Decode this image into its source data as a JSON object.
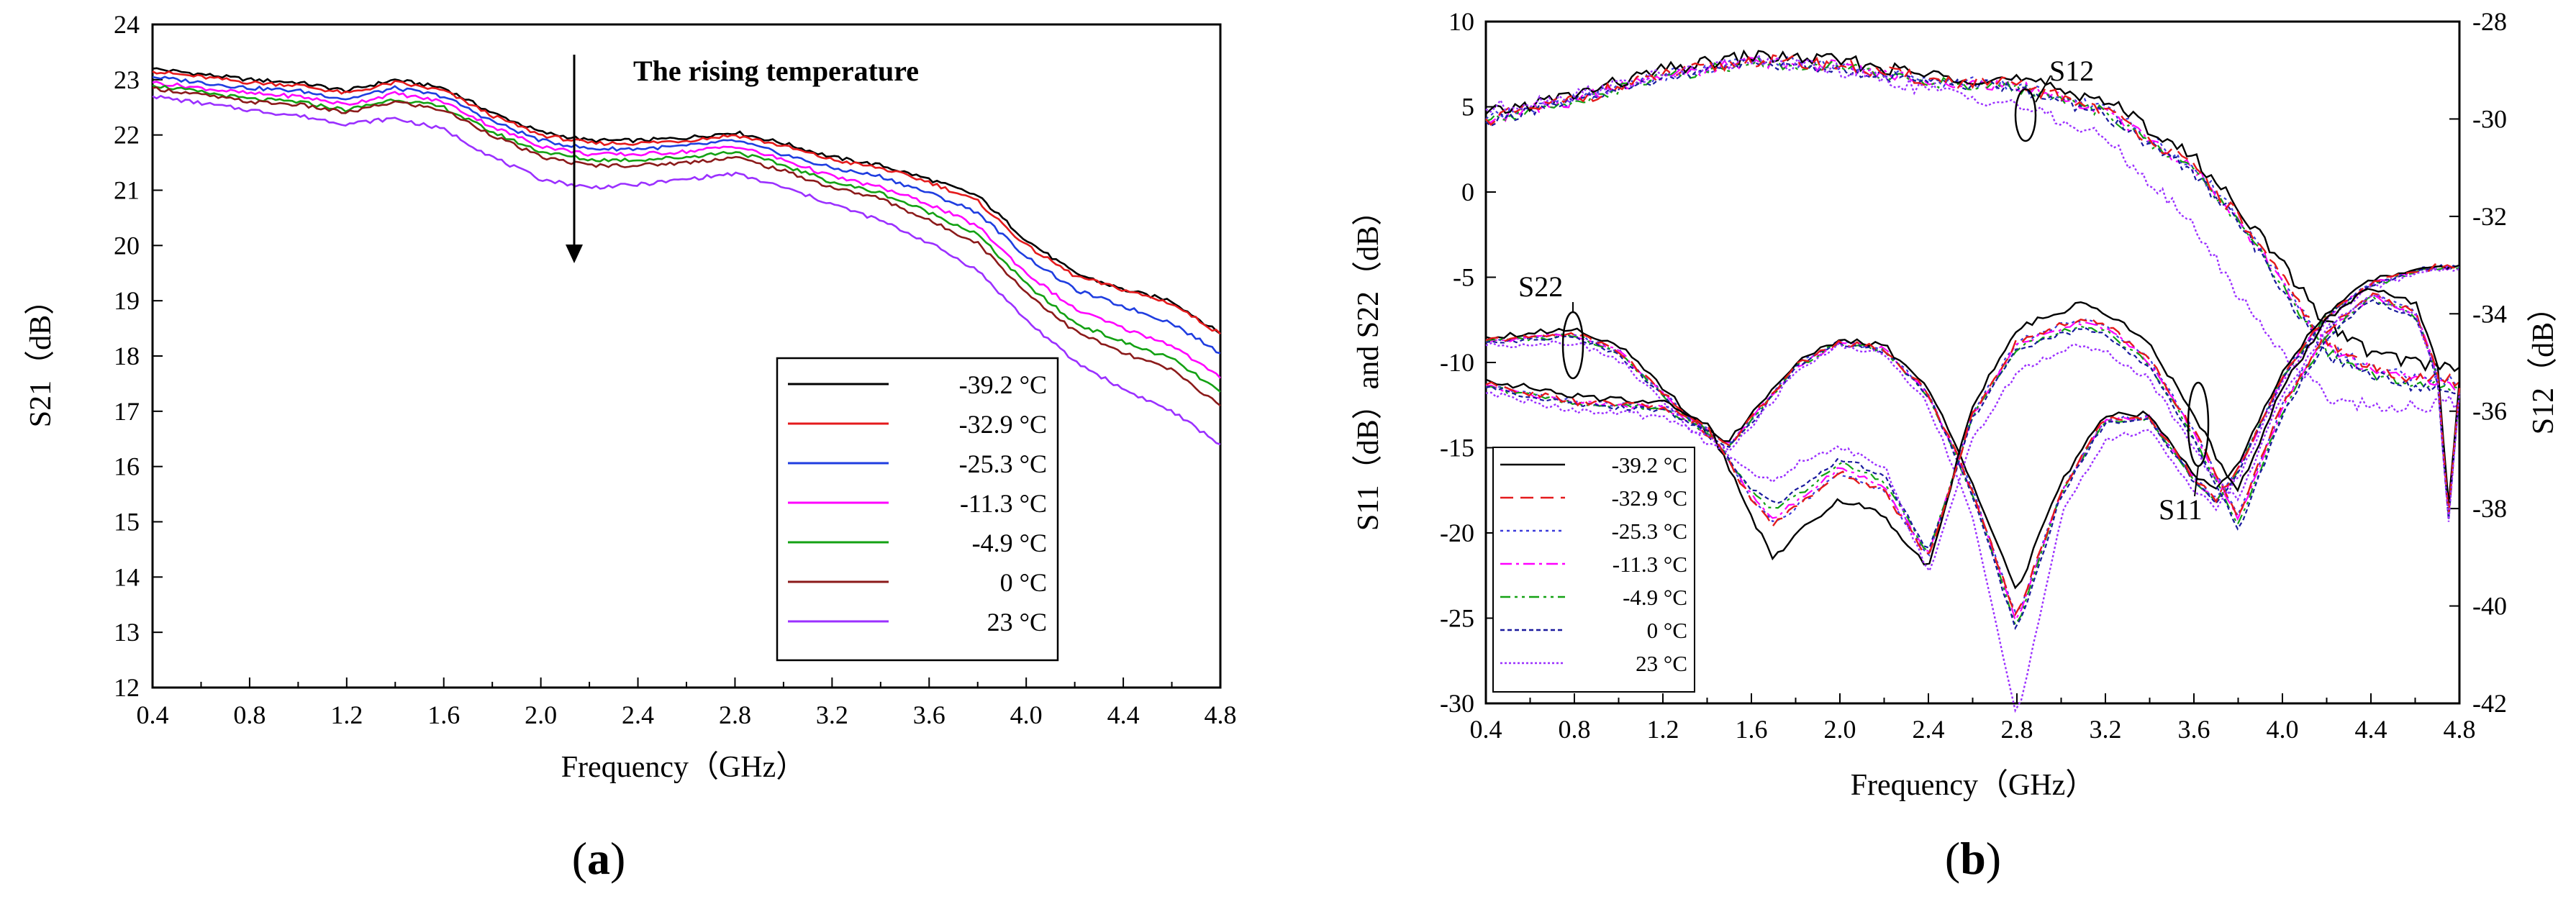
{
  "chart_data": [
    {
      "panel": "(a)",
      "type": "line",
      "xlabel": "Frequency（GHz）",
      "ylabel": "S21（dB）",
      "xlim": [
        0.4,
        4.8
      ],
      "ylim": [
        12,
        24
      ],
      "xticks": [
        "0.4",
        "0.8",
        "1.2",
        "1.6",
        "2.0",
        "2.4",
        "2.8",
        "3.2",
        "3.6",
        "4.0",
        "4.4",
        "4.8"
      ],
      "yticks": [
        "12",
        "13",
        "14",
        "15",
        "16",
        "17",
        "18",
        "19",
        "20",
        "21",
        "22",
        "23",
        "24"
      ],
      "annotation": "The rising temperature",
      "x": [
        0.4,
        0.8,
        1.0,
        1.2,
        1.4,
        1.6,
        1.8,
        2.0,
        2.2,
        2.4,
        2.6,
        2.8,
        3.0,
        3.2,
        3.4,
        3.6,
        3.8,
        4.0,
        4.2,
        4.4,
        4.6,
        4.8
      ],
      "series": [
        {
          "name": "-39.2 °C",
          "color": "#000000",
          "values": [
            23.2,
            23.0,
            22.95,
            22.8,
            23.0,
            22.85,
            22.4,
            22.05,
            21.9,
            21.9,
            21.95,
            22.05,
            21.85,
            21.6,
            21.45,
            21.2,
            20.9,
            20.1,
            19.5,
            19.2,
            19.0,
            18.4
          ]
        },
        {
          "name": "-32.9 °C",
          "color": "#e41a1c",
          "values": [
            23.15,
            22.95,
            22.9,
            22.75,
            22.95,
            22.8,
            22.35,
            22.0,
            21.85,
            21.85,
            21.9,
            22.0,
            21.8,
            21.55,
            21.4,
            21.15,
            20.8,
            20.0,
            19.45,
            19.2,
            18.95,
            18.4
          ]
        },
        {
          "name": "-25.3 °C",
          "color": "#1f3de0",
          "values": [
            23.05,
            22.85,
            22.8,
            22.65,
            22.85,
            22.7,
            22.25,
            21.9,
            21.75,
            21.75,
            21.8,
            21.9,
            21.65,
            21.4,
            21.25,
            20.95,
            20.6,
            19.8,
            19.2,
            18.9,
            18.6,
            18.05
          ]
        },
        {
          "name": "-11.3 °C",
          "color": "#ff00ff",
          "values": [
            22.95,
            22.75,
            22.7,
            22.55,
            22.75,
            22.6,
            22.15,
            21.8,
            21.65,
            21.65,
            21.7,
            21.8,
            21.55,
            21.25,
            21.05,
            20.75,
            20.35,
            19.5,
            18.85,
            18.5,
            18.2,
            17.6
          ]
        },
        {
          "name": "-4.9 °C",
          "color": "#13a113",
          "values": [
            22.9,
            22.65,
            22.6,
            22.45,
            22.65,
            22.5,
            22.05,
            21.7,
            21.55,
            21.55,
            21.6,
            21.7,
            21.45,
            21.15,
            20.95,
            20.6,
            20.2,
            19.3,
            18.6,
            18.25,
            17.95,
            17.35
          ]
        },
        {
          "name": "0 °C",
          "color": "#8b1a1a",
          "values": [
            22.85,
            22.6,
            22.55,
            22.4,
            22.6,
            22.45,
            22.0,
            21.6,
            21.45,
            21.45,
            21.5,
            21.6,
            21.35,
            21.05,
            20.85,
            20.45,
            20.05,
            19.15,
            18.45,
            18.05,
            17.75,
            17.1
          ]
        },
        {
          "name": "23 °C",
          "color": "#9b30ff",
          "values": [
            22.7,
            22.45,
            22.35,
            22.2,
            22.3,
            22.1,
            21.6,
            21.2,
            21.05,
            21.1,
            21.2,
            21.3,
            21.05,
            20.75,
            20.45,
            20.05,
            19.55,
            18.65,
            17.9,
            17.4,
            17.0,
            16.4
          ]
        }
      ]
    },
    {
      "panel": "(b)",
      "type": "line",
      "xlabel": "Frequency（GHz）",
      "ylabel": "S11（dB）and  S22（dB）",
      "ylabel_right": "S12（dB）",
      "xlim": [
        0.4,
        4.8
      ],
      "ylim": [
        -30,
        10
      ],
      "ylim_right": [
        -42,
        -28
      ],
      "xticks": [
        "0.4",
        "0.8",
        "1.2",
        "1.6",
        "2.0",
        "2.4",
        "2.8",
        "3.2",
        "3.6",
        "4.0",
        "4.4",
        "4.8"
      ],
      "yticks": [
        "-30",
        "-25",
        "-20",
        "-15",
        "-10",
        "-5",
        "0",
        "5",
        "10"
      ],
      "yticks_right": [
        "-42",
        "-40",
        "-38",
        "-36",
        "-34",
        "-32",
        "-30",
        "-28"
      ],
      "annotations": [
        "S12",
        "S22",
        "S11"
      ],
      "legend": [
        {
          "name": "-39.2 °C",
          "color": "#000000",
          "dash": "none"
        },
        {
          "name": "-32.9 °C",
          "color": "#e41a1c",
          "dash": "18 10"
        },
        {
          "name": "-25.3 °C",
          "color": "#3b3bdb",
          "dash": "4 5"
        },
        {
          "name": "-11.3 °C",
          "color": "#ff00ff",
          "dash": "16 6 4 6"
        },
        {
          "name": "-4.9 °C",
          "color": "#13a113",
          "dash": "14 6 4 6 4 6"
        },
        {
          "name": "0 °C",
          "color": "#1a1a9e",
          "dash": "6 4"
        },
        {
          "name": "23 °C",
          "color": "#9b30ff",
          "dash": "3 3"
        }
      ],
      "s12_right_axis": {
        "x": [
          0.4,
          0.8,
          1.2,
          1.6,
          2.0,
          2.4,
          2.8,
          3.2,
          3.6,
          3.8,
          4.0,
          4.2,
          4.4,
          4.6,
          4.8
        ],
        "series": [
          {
            "name": "-39.2 °C",
            "values": [
              -29.9,
              -29.5,
              -29.0,
              -28.7,
              -28.8,
              -29.1,
              -29.2,
              -29.6,
              -30.8,
              -31.8,
              -33.0,
              -34.2,
              -34.8,
              -35.0,
              -35.1
            ]
          },
          {
            "name": "-32.9 °C",
            "values": [
              -30.0,
              -29.6,
              -29.1,
              -28.8,
              -28.9,
              -29.2,
              -29.3,
              -29.8,
              -31.0,
              -32.0,
              -33.3,
              -34.6,
              -35.1,
              -35.3,
              -35.4
            ]
          },
          {
            "name": "-25.3 °C",
            "values": [
              -29.8,
              -29.5,
              -29.0,
              -28.7,
              -28.8,
              -29.1,
              -29.3,
              -29.8,
              -31.1,
              -32.1,
              -33.4,
              -34.7,
              -35.2,
              -35.4,
              -35.5
            ]
          },
          {
            "name": "-11.3 °C",
            "values": [
              -29.9,
              -29.6,
              -29.1,
              -28.8,
              -28.9,
              -29.2,
              -29.4,
              -29.9,
              -31.3,
              -32.3,
              -33.6,
              -34.9,
              -35.3,
              -35.5,
              -35.6
            ]
          },
          {
            "name": "-4.9 °C",
            "values": [
              -29.9,
              -29.6,
              -29.1,
              -28.8,
              -28.9,
              -29.2,
              -29.4,
              -30.0,
              -31.4,
              -32.4,
              -33.7,
              -35.0,
              -35.4,
              -35.6,
              -35.6
            ]
          },
          {
            "name": "0 °C",
            "values": [
              -29.8,
              -29.5,
              -29.0,
              -28.8,
              -28.9,
              -29.2,
              -29.4,
              -29.9,
              -31.3,
              -32.3,
              -33.6,
              -34.9,
              -35.3,
              -35.5,
              -35.5
            ]
          },
          {
            "name": "23 °C",
            "values": [
              -29.8,
              -29.5,
              -29.1,
              -28.8,
              -29.0,
              -29.4,
              -29.7,
              -30.4,
              -32.2,
              -33.6,
              -34.8,
              -35.7,
              -35.9,
              -35.9,
              -35.8
            ]
          }
        ]
      },
      "s22": {
        "x": [
          0.4,
          0.8,
          1.0,
          1.2,
          1.4,
          1.5,
          1.6,
          1.8,
          2.0,
          2.2,
          2.4,
          2.6,
          2.8,
          3.0,
          3.2,
          3.4,
          3.6,
          3.7,
          3.8,
          4.0,
          4.2,
          4.4,
          4.6,
          4.7,
          4.8
        ],
        "series": [
          {
            "name": "-39.2 °C",
            "values": [
              -8.5,
              -8.0,
              -9.0,
              -11.5,
              -14.0,
              -14.6,
              -13.0,
              -10.0,
              -8.7,
              -9.0,
              -11.5,
              -17.0,
              -23.5,
              -17.0,
              -13.0,
              -13.0,
              -16.5,
              -17.5,
              -16.0,
              -10.5,
              -7.0,
              -5.2,
              -4.5,
              -4.3,
              -4.3
            ]
          },
          {
            "name": "-32.9 °C",
            "values": [
              -8.7,
              -8.3,
              -9.3,
              -11.8,
              -14.2,
              -14.8,
              -13.3,
              -10.2,
              -8.8,
              -9.2,
              -11.8,
              -17.5,
              -25.0,
              -17.5,
              -13.3,
              -13.2,
              -16.8,
              -18.0,
              -16.3,
              -10.8,
              -7.2,
              -5.4,
              -4.6,
              -4.4,
              -4.4
            ]
          },
          {
            "name": "23 °C",
            "values": [
              -9.0,
              -8.8,
              -9.8,
              -12.3,
              -14.8,
              -15.2,
              -13.8,
              -10.5,
              -9.0,
              -9.5,
              -12.5,
              -19.0,
              -31.0,
              -19.0,
              -14.5,
              -14.0,
              -17.5,
              -18.5,
              -16.8,
              -11.2,
              -7.5,
              -5.6,
              -4.8,
              -4.5,
              -4.5
            ]
          }
        ]
      },
      "s11": {
        "x": [
          0.4,
          0.8,
          1.2,
          1.4,
          1.6,
          1.7,
          1.8,
          2.0,
          2.2,
          2.4,
          2.6,
          2.8,
          3.0,
          3.1,
          3.2,
          3.4,
          3.6,
          3.7,
          3.8,
          4.0,
          4.2,
          4.4,
          4.6,
          4.7,
          4.75,
          4.8
        ],
        "series": [
          {
            "name": "-39.2 °C",
            "values": [
              -11.0,
              -12.0,
              -12.3,
              -13.5,
              -19.0,
              -21.5,
              -20.0,
              -18.0,
              -19.0,
              -22.0,
              -12.5,
              -8.0,
              -7.0,
              -6.5,
              -7.0,
              -9.0,
              -13.0,
              -15.5,
              -17.5,
              -11.5,
              -7.5,
              -5.5,
              -6.5,
              -10.0,
              -18.5,
              -11.0
            ]
          },
          {
            "name": "-32.9 °C",
            "values": [
              -11.3,
              -12.3,
              -12.6,
              -13.8,
              -18.0,
              -19.5,
              -18.5,
              -16.5,
              -17.5,
              -21.5,
              -13.0,
              -8.8,
              -7.8,
              -7.5,
              -7.8,
              -9.8,
              -14.0,
              -16.5,
              -19.0,
              -12.5,
              -8.2,
              -6.0,
              -7.0,
              -10.5,
              -19.0,
              -11.5
            ]
          },
          {
            "name": "23 °C",
            "values": [
              -11.8,
              -12.8,
              -13.2,
              -14.3,
              -16.5,
              -17.0,
              -16.0,
              -15.0,
              -16.0,
              -22.5,
              -14.5,
              -10.5,
              -9.3,
              -9.0,
              -9.3,
              -11.0,
              -15.0,
              -17.0,
              -18.0,
              -12.0,
              -8.0,
              -6.0,
              -7.2,
              -10.8,
              -19.5,
              -11.8
            ]
          }
        ]
      }
    }
  ],
  "panel_labels": {
    "a": "(a)",
    "b": "(b)",
    "a_letter": "a",
    "b_letter": "b",
    "paren_open": "(",
    "paren_close": ")"
  }
}
